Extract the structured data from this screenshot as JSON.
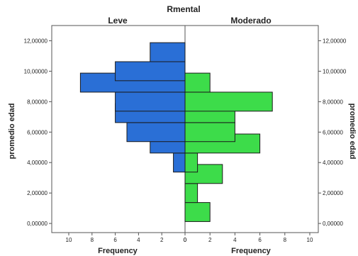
{
  "chart_data": {
    "type": "bar",
    "orientation": "population-pyramid",
    "title": "Rmental",
    "left_panel": {
      "title": "Leve",
      "xlabel": "Frequency",
      "color": "#2a6fd6",
      "xlim": [
        0,
        10
      ],
      "xticks": [
        "10",
        "8",
        "6",
        "4",
        "2",
        "0"
      ]
    },
    "right_panel": {
      "title": "Moderado",
      "xlabel": "Frequency",
      "color": "#3ddc4a",
      "xlim": [
        0,
        10
      ],
      "xticks": [
        "0",
        "2",
        "4",
        "6",
        "8",
        "10"
      ]
    },
    "ylabel_left": "promedio edad",
    "ylabel_right": "promedio edad",
    "ylim": [
      -0.6,
      13.0
    ],
    "yticks": [
      "0,00000",
      "2,00000",
      "4,00000",
      "6,00000",
      "8,00000",
      "10,00000",
      "12,00000"
    ],
    "bin_centers": [
      0.75,
      2.0,
      3.25,
      4.0,
      5.25,
      6.0,
      7.25,
      8.0,
      9.25,
      10.0,
      11.25,
      12.0
    ],
    "bin_width": 1.25,
    "series": [
      {
        "name": "Leve",
        "values": [
          0,
          0,
          0,
          1,
          3,
          5,
          6,
          6,
          9,
          6,
          3,
          0
        ]
      },
      {
        "name": "Moderado",
        "values": [
          2,
          1,
          3,
          1,
          6,
          4,
          4,
          7,
          2,
          0,
          0,
          0
        ]
      }
    ],
    "legend": "none",
    "grid": false
  }
}
